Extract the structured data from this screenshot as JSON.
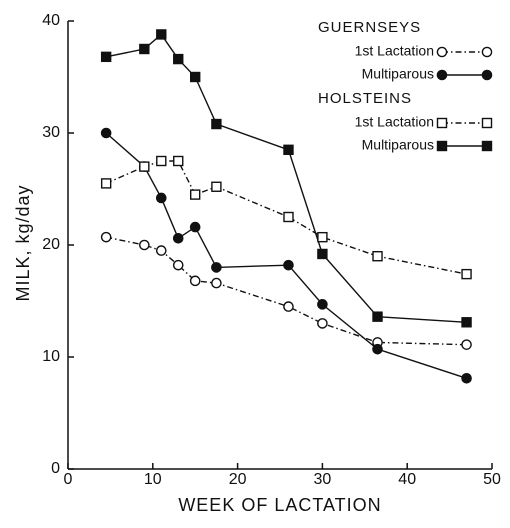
{
  "chart_data": {
    "type": "line",
    "x_label": "WEEK OF LACTATION",
    "y_label": "MILK, kg/day",
    "x": [
      4.5,
      9,
      11,
      13,
      15,
      17.5,
      26,
      30,
      36.5,
      47
    ],
    "xlim": [
      0,
      50
    ],
    "xticks": [
      0,
      10,
      20,
      30,
      40,
      50
    ],
    "ylim": [
      0,
      40
    ],
    "yticks": [
      0,
      10,
      20,
      30,
      40
    ],
    "color": "#111111",
    "groups": [
      {
        "name": "GUERNSEYS",
        "series": [
          {
            "name": "1st Lactation",
            "marker": "circle",
            "filled": false,
            "line": "dashdot",
            "values": [
              20.7,
              20,
              19.5,
              18.2,
              16.8,
              16.6,
              14.5,
              13,
              11.3,
              11.1
            ]
          },
          {
            "name": "Multiparous",
            "marker": "circle",
            "filled": true,
            "line": "solid",
            "values": [
              30,
              27,
              24.2,
              20.6,
              21.6,
              18,
              18.2,
              14.7,
              10.7,
              8.1
            ]
          }
        ]
      },
      {
        "name": "HOLSTEINS",
        "series": [
          {
            "name": "1st Lactation",
            "marker": "square",
            "filled": false,
            "line": "dashdot",
            "values": [
              25.5,
              27,
              27.5,
              27.5,
              24.5,
              25.2,
              22.5,
              20.7,
              19,
              17.4
            ]
          },
          {
            "name": "Multiparous",
            "marker": "square",
            "filled": true,
            "line": "solid",
            "values": [
              36.8,
              37.5,
              38.8,
              36.6,
              35,
              30.8,
              28.5,
              19.2,
              13.6,
              13.1
            ]
          }
        ]
      }
    ]
  }
}
